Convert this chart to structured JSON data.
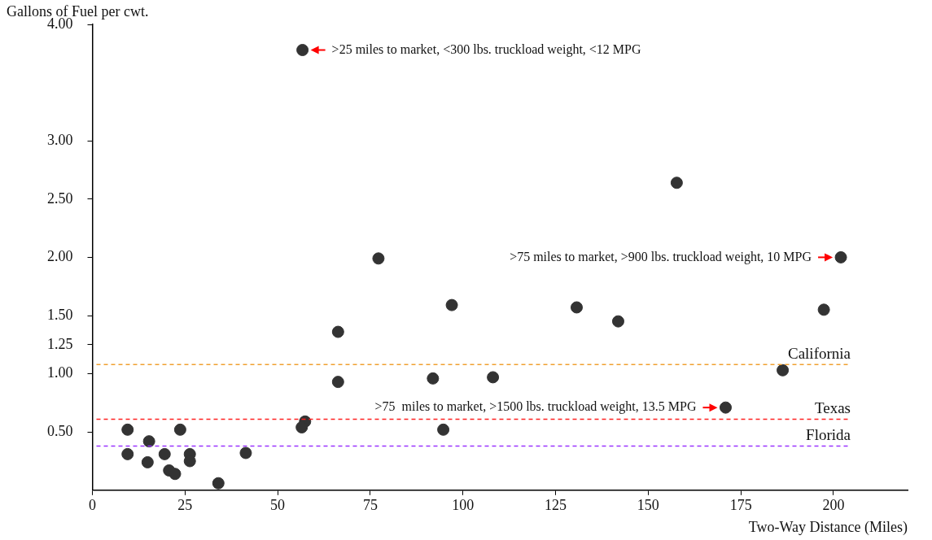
{
  "chart_data": {
    "type": "scatter",
    "xlabel": "Two-Way Distance (Miles)",
    "ylabel": "Gallons of Fuel per cwt.",
    "x": [
      56.7,
      157.7,
      77.2,
      202,
      97,
      130.7,
      141.9,
      197.4,
      66.3,
      66.3,
      91.9,
      108.1,
      186.3,
      170.9,
      57.4,
      56.5,
      94.7,
      9.5,
      23.7,
      15.3,
      9.5,
      19.5,
      26.3,
      41.4,
      14.9,
      26.3,
      20.7,
      22.3,
      34
    ],
    "values": [
      3.78,
      2.64,
      1.99,
      2,
      1.59,
      1.57,
      1.45,
      1.55,
      1.36,
      0.93,
      0.96,
      0.97,
      1.03,
      0.71,
      0.59,
      0.54,
      0.52,
      0.52,
      0.52,
      0.42,
      0.31,
      0.31,
      0.31,
      0.32,
      0.24,
      0.25,
      0.17,
      0.14,
      0.06
    ],
    "color": "#333333",
    "marker": "circle",
    "grid": false,
    "legend": false,
    "xlim": [
      0,
      220
    ],
    "xticks": [
      0,
      25,
      50,
      75,
      100,
      125,
      150,
      175,
      200
    ],
    "ylim": [
      0,
      4
    ],
    "yticks": [
      {
        "value": 0.5,
        "label": "0.50"
      },
      {
        "value": 1,
        "label": "1.00"
      },
      {
        "value": 1.25,
        "label": "1.25"
      },
      {
        "value": 1.5,
        "label": "1.50"
      },
      {
        "value": 2,
        "label": "2.00"
      },
      {
        "value": 2.5,
        "label": "2.50"
      },
      {
        "value": 3,
        "label": "3.00"
      },
      {
        "value": 4,
        "label": "4.00"
      }
    ],
    "ref_lines": [
      {
        "axis": "y",
        "value": 1.08,
        "label": "California",
        "color": "#f0a030",
        "line_style": "dashed"
      },
      {
        "axis": "y",
        "value": 0.61,
        "label": "Texas",
        "color": "#ff2020",
        "line_style": "dashed"
      },
      {
        "axis": "y",
        "value": 0.38,
        "label": "Florida",
        "color": "#9933ff",
        "line_style": "dashed"
      }
    ],
    "annotations": [
      {
        "text": ">25 miles to market, <300 lbs. truckload weight, <12 MPG",
        "x": 56.7,
        "y": 3.78
      },
      {
        "text": ">75 miles to market, >900 lbs. truckload weight, 10 MPG",
        "x": 202,
        "y": 2
      },
      {
        "text": ">75  miles to market, >1500 lbs. truckload weight, 13.5 MPG",
        "x": 170.9,
        "y": 0.71
      }
    ]
  }
}
